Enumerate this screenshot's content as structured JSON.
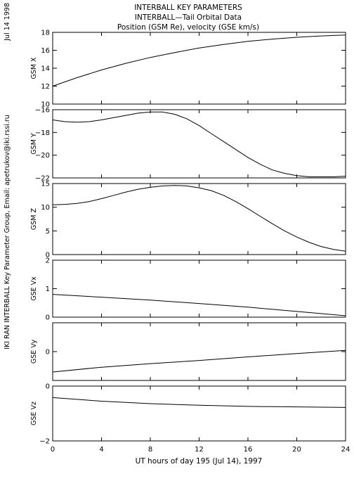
{
  "header": {
    "title_line1": "INTERBALL KEY PARAMETERS",
    "title_line2": "INTERBALL—Tail Orbital Data",
    "title_line3": "Position (GSM Re), velocity (GSE km/s)"
  },
  "side_labels": {
    "date": "Jul 14 1998",
    "credit": "IKI RAN INTERBALL Key Parameter Group, Email: apetrukov@iki.rssi.ru"
  },
  "chart_data": {
    "type": "line",
    "xlabel": "UT hours of day 195 (Jul 14), 1997",
    "xlim": [
      0,
      24
    ],
    "xticks": [
      0,
      4,
      8,
      12,
      16,
      20,
      24
    ],
    "xtick_labels": [
      "0",
      "4",
      "8",
      "12",
      "16",
      "20",
      "24"
    ],
    "panels": [
      {
        "ylabel": "GSM X",
        "ylim": [
          10,
          18
        ],
        "yticks": [
          10,
          12,
          14,
          16,
          18
        ],
        "ytick_labels": [
          "10",
          "12",
          "14",
          "16",
          "18"
        ],
        "x": [
          0,
          2,
          4,
          6,
          8,
          10,
          12,
          14,
          16,
          18,
          20,
          22,
          24
        ],
        "y": [
          12.0,
          12.95,
          13.8,
          14.55,
          15.2,
          15.75,
          16.25,
          16.65,
          17.0,
          17.25,
          17.45,
          17.6,
          17.7
        ]
      },
      {
        "ylabel": "GSM Y",
        "ylim": [
          -22,
          -16
        ],
        "yticks": [
          -22,
          -20,
          -18,
          -16
        ],
        "ytick_labels": [
          "−22",
          "−20",
          "−18",
          "−16"
        ],
        "x": [
          0,
          1,
          2,
          3,
          4,
          5,
          6,
          7,
          8,
          9,
          10,
          11,
          12,
          13,
          14,
          15,
          16,
          17,
          18,
          19,
          20,
          21,
          22,
          23,
          24
        ],
        "y": [
          -16.9,
          -17.05,
          -17.1,
          -17.05,
          -16.9,
          -16.7,
          -16.5,
          -16.3,
          -16.2,
          -16.2,
          -16.4,
          -16.8,
          -17.4,
          -18.1,
          -18.8,
          -19.5,
          -20.2,
          -20.8,
          -21.3,
          -21.6,
          -21.8,
          -21.9,
          -21.9,
          -21.9,
          -21.85
        ]
      },
      {
        "ylabel": "GSM Z",
        "ylim": [
          0,
          15
        ],
        "yticks": [
          0,
          5,
          10,
          15
        ],
        "ytick_labels": [
          "0",
          "5",
          "10",
          "15"
        ],
        "x": [
          0,
          1,
          2,
          3,
          4,
          5,
          6,
          7,
          8,
          9,
          10,
          11,
          12,
          13,
          14,
          15,
          16,
          17,
          18,
          19,
          20,
          21,
          22,
          23,
          24
        ],
        "y": [
          10.5,
          10.6,
          10.8,
          11.2,
          11.8,
          12.5,
          13.2,
          13.8,
          14.2,
          14.5,
          14.6,
          14.5,
          14.1,
          13.5,
          12.5,
          11.2,
          9.7,
          8.1,
          6.5,
          5.0,
          3.7,
          2.6,
          1.7,
          1.1,
          0.7
        ]
      },
      {
        "ylabel": "GSE Vx",
        "ylim": [
          0,
          2
        ],
        "yticks": [
          0,
          1,
          2
        ],
        "ytick_labels": [
          "0",
          "1",
          "2"
        ],
        "x": [
          0,
          4,
          8,
          12,
          16,
          20,
          24
        ],
        "y": [
          0.8,
          0.7,
          0.6,
          0.48,
          0.35,
          0.2,
          0.05
        ]
      },
      {
        "ylabel": "GSE Vy",
        "ylim": [
          -1.2,
          1.2
        ],
        "yticks": [
          0
        ],
        "ytick_labels": [
          "0"
        ],
        "x": [
          0,
          4,
          8,
          12,
          16,
          20,
          24
        ],
        "y": [
          -0.85,
          -0.65,
          -0.5,
          -0.37,
          -0.22,
          -0.08,
          0.05
        ]
      },
      {
        "ylabel": "GSE Vz",
        "ylim": [
          -2,
          0
        ],
        "yticks": [
          -2,
          0
        ],
        "ytick_labels": [
          "−2",
          "0"
        ],
        "x": [
          0,
          4,
          8,
          12,
          16,
          20,
          24
        ],
        "y": [
          -0.42,
          -0.55,
          -0.64,
          -0.7,
          -0.74,
          -0.76,
          -0.78
        ]
      }
    ]
  }
}
